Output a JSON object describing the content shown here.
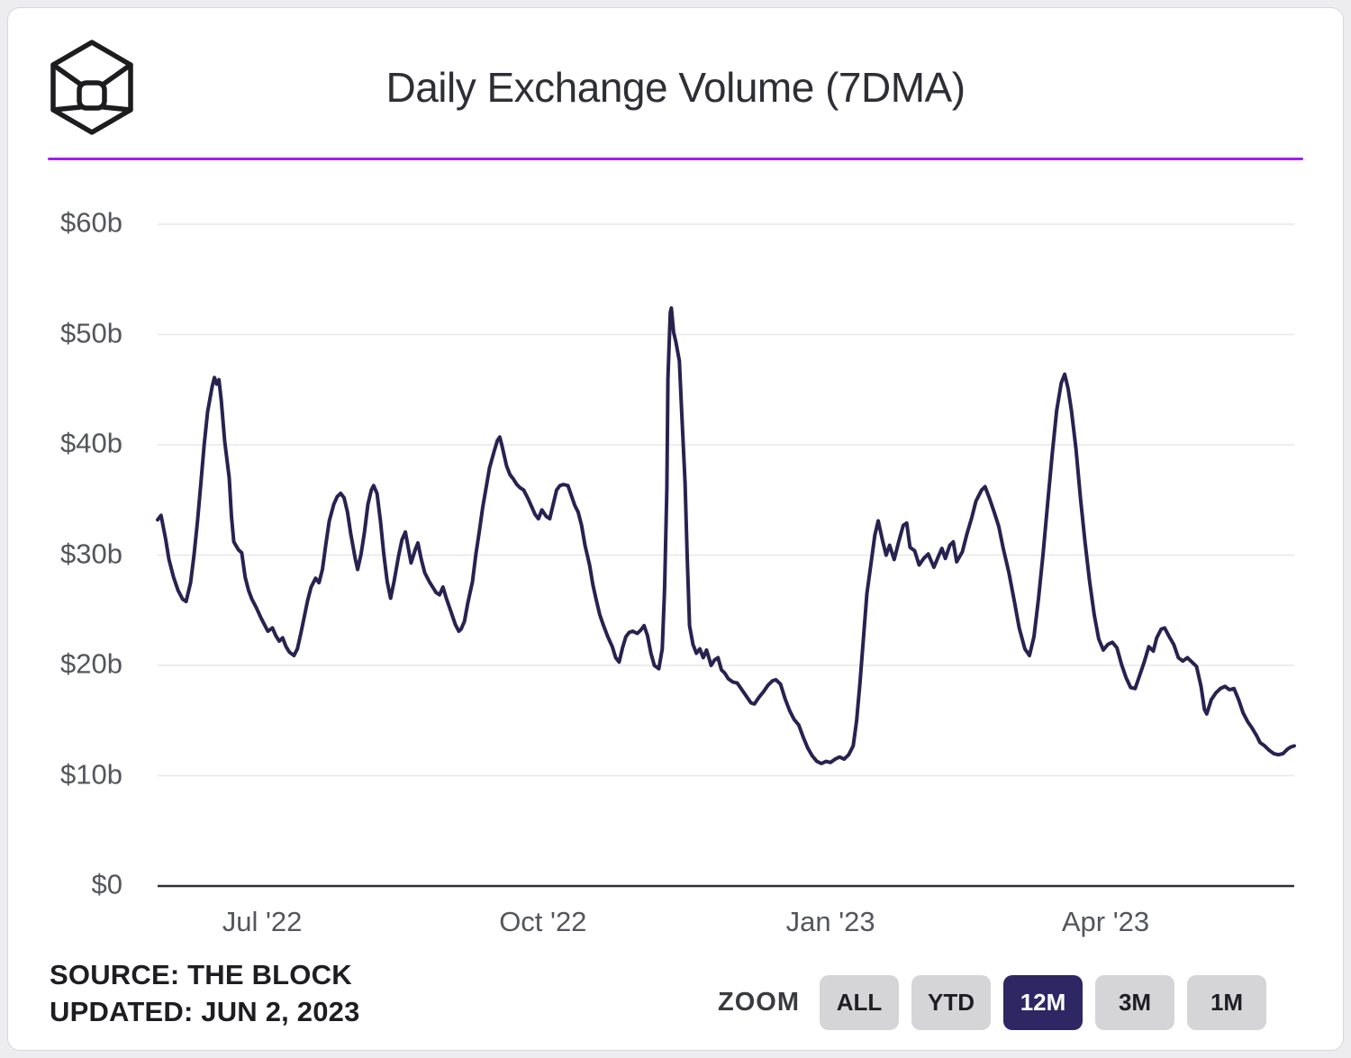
{
  "header": {
    "title": "Daily Exchange Volume (7DMA)"
  },
  "brand": {
    "logo_name": "the-block-cube-logo",
    "accent_purple": "#a51df2"
  },
  "chart_data": {
    "type": "line",
    "title": "Daily Exchange Volume (7DMA)",
    "unit": "USD billions per day",
    "series_name": "Daily exchange volume, 7-day moving average",
    "line_color": "#282250",
    "grid": true,
    "legend": "none",
    "ylim": [
      0,
      60
    ],
    "x_range": [
      "Jun '22",
      "Jun '23"
    ],
    "y_ticks": [
      {
        "label": "$60b",
        "value": 60
      },
      {
        "label": "$50b",
        "value": 50
      },
      {
        "label": "$40b",
        "value": 40
      },
      {
        "label": "$30b",
        "value": 30
      },
      {
        "label": "$20b",
        "value": 20
      },
      {
        "label": "$10b",
        "value": 10
      },
      {
        "label": "$0",
        "value": 0
      }
    ],
    "x_ticks": [
      {
        "label": "Jul '22",
        "t": 0.092
      },
      {
        "label": "Oct '22",
        "t": 0.339
      },
      {
        "label": "Jan '23",
        "t": 0.592
      },
      {
        "label": "Apr '23",
        "t": 0.834
      }
    ],
    "points_format": "[t, usd_billions] where t runs 0..1 across the 12-month window (Jun 2 2022 to Jun 2 2023)",
    "points": [
      [
        0,
        33.2
      ],
      [
        0.003,
        33.6
      ],
      [
        0.007,
        31.5
      ],
      [
        0.01,
        29.6
      ],
      [
        0.014,
        28
      ],
      [
        0.018,
        26.8
      ],
      [
        0.022,
        26
      ],
      [
        0.025,
        25.8
      ],
      [
        0.029,
        27.5
      ],
      [
        0.032,
        30
      ],
      [
        0.035,
        33
      ],
      [
        0.038,
        36.5
      ],
      [
        0.041,
        40
      ],
      [
        0.044,
        43
      ],
      [
        0.048,
        45.3
      ],
      [
        0.05,
        46.1
      ],
      [
        0.052,
        45.5
      ],
      [
        0.054,
        45.9
      ],
      [
        0.056,
        44
      ],
      [
        0.059,
        40.3
      ],
      [
        0.063,
        37
      ],
      [
        0.065,
        33.5
      ],
      [
        0.067,
        31.2
      ],
      [
        0.071,
        30.5
      ],
      [
        0.074,
        30.2
      ],
      [
        0.077,
        28
      ],
      [
        0.08,
        26.8
      ],
      [
        0.083,
        26
      ],
      [
        0.087,
        25.2
      ],
      [
        0.091,
        24.3
      ],
      [
        0.094,
        23.7
      ],
      [
        0.097,
        23.1
      ],
      [
        0.101,
        23.4
      ],
      [
        0.104,
        22.7
      ],
      [
        0.107,
        22.2
      ],
      [
        0.11,
        22.5
      ],
      [
        0.113,
        21.7
      ],
      [
        0.116,
        21.2
      ],
      [
        0.12,
        20.9
      ],
      [
        0.123,
        21.5
      ],
      [
        0.126,
        22.9
      ],
      [
        0.129,
        24.4
      ],
      [
        0.132,
        25.9
      ],
      [
        0.135,
        27.1
      ],
      [
        0.139,
        27.9
      ],
      [
        0.142,
        27.5
      ],
      [
        0.145,
        28.7
      ],
      [
        0.148,
        31
      ],
      [
        0.151,
        33.1
      ],
      [
        0.155,
        34.6
      ],
      [
        0.158,
        35.3
      ],
      [
        0.161,
        35.6
      ],
      [
        0.164,
        35.2
      ],
      [
        0.167,
        33.9
      ],
      [
        0.17,
        31.9
      ],
      [
        0.174,
        29.6
      ],
      [
        0.176,
        28.7
      ],
      [
        0.179,
        30.1
      ],
      [
        0.182,
        32.1
      ],
      [
        0.185,
        34.6
      ],
      [
        0.188,
        35.9
      ],
      [
        0.19,
        36.3
      ],
      [
        0.193,
        35.6
      ],
      [
        0.196,
        33.1
      ],
      [
        0.199,
        30.1
      ],
      [
        0.202,
        27.6
      ],
      [
        0.205,
        26.1
      ],
      [
        0.208,
        27.6
      ],
      [
        0.212,
        29.9
      ],
      [
        0.215,
        31.4
      ],
      [
        0.218,
        32.1
      ],
      [
        0.221,
        30.4
      ],
      [
        0.223,
        29.3
      ],
      [
        0.227,
        30.6
      ],
      [
        0.229,
        31.1
      ],
      [
        0.232,
        29.6
      ],
      [
        0.235,
        28.4
      ],
      [
        0.239,
        27.6
      ],
      [
        0.242,
        27.1
      ],
      [
        0.245,
        26.6
      ],
      [
        0.248,
        26.4
      ],
      [
        0.251,
        27.1
      ],
      [
        0.254,
        26.1
      ],
      [
        0.258,
        24.9
      ],
      [
        0.262,
        23.7
      ],
      [
        0.265,
        23.1
      ],
      [
        0.267,
        23.3
      ],
      [
        0.27,
        24
      ],
      [
        0.273,
        25.7
      ],
      [
        0.277,
        27.6
      ],
      [
        0.28,
        30.1
      ],
      [
        0.283,
        32.1
      ],
      [
        0.286,
        34.3
      ],
      [
        0.289,
        36.1
      ],
      [
        0.292,
        37.9
      ],
      [
        0.296,
        39.4
      ],
      [
        0.299,
        40.4
      ],
      [
        0.301,
        40.7
      ],
      [
        0.303,
        39.9
      ],
      [
        0.307,
        38.1
      ],
      [
        0.31,
        37.3
      ],
      [
        0.313,
        36.9
      ],
      [
        0.316,
        36.4
      ],
      [
        0.319,
        36.1
      ],
      [
        0.322,
        35.9
      ],
      [
        0.326,
        35.1
      ],
      [
        0.329,
        34.4
      ],
      [
        0.332,
        33.7
      ],
      [
        0.335,
        33.3
      ],
      [
        0.338,
        34.1
      ],
      [
        0.342,
        33.5
      ],
      [
        0.345,
        33.3
      ],
      [
        0.348,
        34.6
      ],
      [
        0.351,
        35.9
      ],
      [
        0.354,
        36.3
      ],
      [
        0.357,
        36.4
      ],
      [
        0.361,
        36.3
      ],
      [
        0.364,
        35.4
      ],
      [
        0.367,
        34.5
      ],
      [
        0.37,
        33.9
      ],
      [
        0.373,
        32.7
      ],
      [
        0.376,
        30.9
      ],
      [
        0.38,
        29.1
      ],
      [
        0.383,
        27.3
      ],
      [
        0.386,
        25.9
      ],
      [
        0.389,
        24.6
      ],
      [
        0.392,
        23.7
      ],
      [
        0.396,
        22.6
      ],
      [
        0.4,
        21.7
      ],
      [
        0.403,
        20.7
      ],
      [
        0.406,
        20.3
      ],
      [
        0.409,
        21.6
      ],
      [
        0.412,
        22.6
      ],
      [
        0.415,
        23
      ],
      [
        0.418,
        23.1
      ],
      [
        0.422,
        22.9
      ],
      [
        0.425,
        23.2
      ],
      [
        0.428,
        23.6
      ],
      [
        0.431,
        22.7
      ],
      [
        0.434,
        21.1
      ],
      [
        0.437,
        20
      ],
      [
        0.441,
        19.7
      ],
      [
        0.444,
        21.5
      ],
      [
        0.446,
        27
      ],
      [
        0.448,
        36
      ],
      [
        0.449,
        46
      ],
      [
        0.451,
        52
      ],
      [
        0.452,
        52.4
      ],
      [
        0.454,
        50.2
      ],
      [
        0.456,
        49.3
      ],
      [
        0.459,
        47.6
      ],
      [
        0.461,
        43.1
      ],
      [
        0.464,
        36.6
      ],
      [
        0.466,
        29.6
      ],
      [
        0.468,
        23.6
      ],
      [
        0.471,
        21.9
      ],
      [
        0.474,
        21.1
      ],
      [
        0.477,
        21.5
      ],
      [
        0.48,
        20.7
      ],
      [
        0.483,
        21.4
      ],
      [
        0.487,
        20
      ],
      [
        0.49,
        20.5
      ],
      [
        0.493,
        20.7
      ],
      [
        0.496,
        19.6
      ],
      [
        0.499,
        19.3
      ],
      [
        0.502,
        18.8
      ],
      [
        0.506,
        18.5
      ],
      [
        0.51,
        18.4
      ],
      [
        0.514,
        17.8
      ],
      [
        0.518,
        17.2
      ],
      [
        0.522,
        16.6
      ],
      [
        0.525,
        16.5
      ],
      [
        0.529,
        17.1
      ],
      [
        0.533,
        17.6
      ],
      [
        0.537,
        18.2
      ],
      [
        0.541,
        18.6
      ],
      [
        0.544,
        18.7
      ],
      [
        0.548,
        18.3
      ],
      [
        0.552,
        17
      ],
      [
        0.556,
        15.9
      ],
      [
        0.56,
        15.1
      ],
      [
        0.564,
        14.6
      ],
      [
        0.568,
        13.5
      ],
      [
        0.572,
        12.5
      ],
      [
        0.576,
        11.8
      ],
      [
        0.58,
        11.3
      ],
      [
        0.584,
        11.1
      ],
      [
        0.588,
        11.3
      ],
      [
        0.592,
        11.2
      ],
      [
        0.596,
        11.5
      ],
      [
        0.6,
        11.7
      ],
      [
        0.604,
        11.5
      ],
      [
        0.608,
        11.9
      ],
      [
        0.612,
        12.7
      ],
      [
        0.615,
        15
      ],
      [
        0.618,
        18.5
      ],
      [
        0.621,
        22.5
      ],
      [
        0.624,
        26.5
      ],
      [
        0.628,
        29.5
      ],
      [
        0.631,
        31.8
      ],
      [
        0.634,
        33.1
      ],
      [
        0.638,
        31.2
      ],
      [
        0.641,
        30
      ],
      [
        0.644,
        30.9
      ],
      [
        0.648,
        29.6
      ],
      [
        0.652,
        31.2
      ],
      [
        0.656,
        32.7
      ],
      [
        0.659,
        32.9
      ],
      [
        0.662,
        30.7
      ],
      [
        0.666,
        30.4
      ],
      [
        0.67,
        29.1
      ],
      [
        0.674,
        29.7
      ],
      [
        0.678,
        30.1
      ],
      [
        0.683,
        28.9
      ],
      [
        0.687,
        29.9
      ],
      [
        0.69,
        30.6
      ],
      [
        0.693,
        29.7
      ],
      [
        0.697,
        30.9
      ],
      [
        0.7,
        31.2
      ],
      [
        0.703,
        29.4
      ],
      [
        0.708,
        30.3
      ],
      [
        0.712,
        31.9
      ],
      [
        0.716,
        33.3
      ],
      [
        0.72,
        34.9
      ],
      [
        0.725,
        35.9
      ],
      [
        0.728,
        36.2
      ],
      [
        0.732,
        35.1
      ],
      [
        0.736,
        33.9
      ],
      [
        0.74,
        32.6
      ],
      [
        0.744,
        30.6
      ],
      [
        0.749,
        28.4
      ],
      [
        0.754,
        25.7
      ],
      [
        0.758,
        23.4
      ],
      [
        0.763,
        21.5
      ],
      [
        0.767,
        20.9
      ],
      [
        0.771,
        22.6
      ],
      [
        0.775,
        26.1
      ],
      [
        0.779,
        30.1
      ],
      [
        0.783,
        34.6
      ],
      [
        0.787,
        39.1
      ],
      [
        0.791,
        43.1
      ],
      [
        0.795,
        45.6
      ],
      [
        0.798,
        46.4
      ],
      [
        0.801,
        45.1
      ],
      [
        0.804,
        43.1
      ],
      [
        0.808,
        39.6
      ],
      [
        0.812,
        35.1
      ],
      [
        0.816,
        31.1
      ],
      [
        0.82,
        27.6
      ],
      [
        0.824,
        24.6
      ],
      [
        0.828,
        22.4
      ],
      [
        0.832,
        21.4
      ],
      [
        0.836,
        21.9
      ],
      [
        0.84,
        22.1
      ],
      [
        0.844,
        21.6
      ],
      [
        0.848,
        20.1
      ],
      [
        0.852,
        18.9
      ],
      [
        0.856,
        18
      ],
      [
        0.86,
        17.9
      ],
      [
        0.864,
        19.1
      ],
      [
        0.868,
        20.3
      ],
      [
        0.872,
        21.7
      ],
      [
        0.876,
        21.3
      ],
      [
        0.879,
        22.5
      ],
      [
        0.883,
        23.3
      ],
      [
        0.886,
        23.4
      ],
      [
        0.89,
        22.6
      ],
      [
        0.894,
        21.9
      ],
      [
        0.898,
        20.7
      ],
      [
        0.902,
        20.4
      ],
      [
        0.906,
        20.7
      ],
      [
        0.91,
        20.3
      ],
      [
        0.914,
        19.9
      ],
      [
        0.918,
        18.1
      ],
      [
        0.921,
        16
      ],
      [
        0.923,
        15.6
      ],
      [
        0.927,
        16.9
      ],
      [
        0.931,
        17.5
      ],
      [
        0.935,
        17.9
      ],
      [
        0.939,
        18.1
      ],
      [
        0.943,
        17.8
      ],
      [
        0.947,
        17.9
      ],
      [
        0.951,
        16.9
      ],
      [
        0.955,
        15.7
      ],
      [
        0.959,
        14.9
      ],
      [
        0.963,
        14.3
      ],
      [
        0.967,
        13.6
      ],
      [
        0.97,
        13
      ],
      [
        0.974,
        12.7
      ],
      [
        0.978,
        12.3
      ],
      [
        0.982,
        12
      ],
      [
        0.986,
        11.9
      ],
      [
        0.99,
        12
      ],
      [
        0.994,
        12.4
      ],
      [
        0.997,
        12.6
      ],
      [
        1,
        12.7
      ]
    ]
  },
  "footer": {
    "source": "SOURCE: THE BLOCK",
    "updated": "UPDATED: JUN 2, 2023"
  },
  "zoom_controls": {
    "label": "ZOOM",
    "options": [
      "ALL",
      "YTD",
      "12M",
      "3M",
      "1M"
    ],
    "active": "12M"
  }
}
